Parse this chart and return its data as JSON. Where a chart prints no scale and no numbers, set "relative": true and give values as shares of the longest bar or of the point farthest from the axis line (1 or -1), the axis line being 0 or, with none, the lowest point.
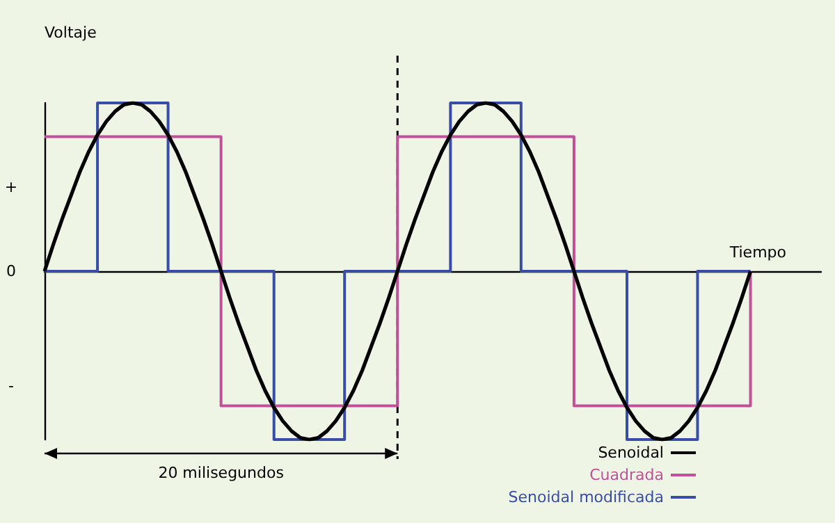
{
  "chart_data": {
    "type": "line",
    "relative": true,
    "xlabel": "Tiempo",
    "ylabel": "Voltaje",
    "grid": false,
    "legend": "bottom right",
    "categories": [
      null,
      null,
      null,
      null,
      null,
      null,
      null,
      null,
      null,
      null,
      null,
      null,
      null,
      null,
      null,
      null,
      null,
      null,
      null,
      null,
      null,
      null,
      null,
      null,
      null,
      null,
      null,
      null,
      null,
      null,
      null,
      null,
      null,
      null,
      null,
      null,
      null,
      null,
      null,
      null,
      null,
      null,
      null,
      null,
      null,
      null,
      null,
      null,
      null,
      null,
      null,
      null,
      null,
      null,
      null,
      null,
      null,
      null,
      null,
      null,
      null,
      null,
      null,
      null,
      null,
      null,
      null,
      null,
      null,
      null,
      null,
      null,
      null,
      null,
      null,
      null,
      null,
      null,
      null,
      null,
      null,
      null,
      null,
      null,
      null,
      null,
      null,
      null,
      null
    ],
    "series": [
      {
        "name": "Senoidal",
        "color": "#000000",
        "values": [
          0,
          0.16,
          0.31,
          0.45,
          0.59,
          0.71,
          0.81,
          0.89,
          0.95,
          0.99,
          1,
          0.99,
          0.95,
          0.89,
          0.81,
          0.71,
          0.59,
          0.45,
          0.31,
          0.16,
          0,
          -0.16,
          -0.31,
          -0.45,
          -0.59,
          -0.71,
          -0.81,
          -0.89,
          -0.95,
          -0.99,
          -1,
          -0.99,
          -0.95,
          -0.89,
          -0.81,
          -0.71,
          -0.59,
          -0.45,
          -0.31,
          -0.16,
          0,
          0.16,
          0.31,
          0.45,
          0.59,
          0.71,
          0.81,
          0.89,
          0.95,
          0.99,
          1,
          0.99,
          0.95,
          0.89,
          0.81,
          0.71,
          0.59,
          0.45,
          0.31,
          0.16,
          0,
          -0.16,
          -0.31,
          -0.45,
          -0.59,
          -0.71,
          -0.81,
          -0.89,
          -0.95,
          -0.99,
          -1,
          -0.99,
          -0.95,
          -0.89,
          -0.81,
          -0.71,
          -0.59,
          -0.45,
          -0.31,
          -0.16,
          0,
          null,
          null,
          null,
          null,
          null,
          null,
          null,
          null
        ]
      },
      {
        "name": "Cuadrada",
        "color": "#c0509c",
        "type": "step",
        "values": [
          0.8,
          0.8,
          0.8,
          0.8,
          0.8,
          0.8,
          0.8,
          0.8,
          0.8,
          0.8,
          0.8,
          0.8,
          0.8,
          0.8,
          0.8,
          0.8,
          0.8,
          0.8,
          0.8,
          0.8,
          -0.8,
          -0.8,
          -0.8,
          -0.8,
          -0.8,
          -0.8,
          -0.8,
          -0.8,
          -0.8,
          -0.8,
          -0.8,
          -0.8,
          -0.8,
          -0.8,
          -0.8,
          -0.8,
          -0.8,
          -0.8,
          -0.8,
          -0.8,
          0.8,
          0.8,
          0.8,
          0.8,
          0.8,
          0.8,
          0.8,
          0.8,
          0.8,
          0.8,
          0.8,
          0.8,
          0.8,
          0.8,
          0.8,
          0.8,
          0.8,
          0.8,
          0.8,
          0.8,
          -0.8,
          -0.8,
          -0.8,
          -0.8,
          -0.8,
          -0.8,
          -0.8,
          -0.8,
          -0.8,
          -0.8,
          -0.8,
          -0.8,
          -0.8,
          -0.8,
          -0.8,
          -0.8,
          -0.8,
          -0.8,
          -0.8,
          -0.8,
          0,
          null,
          null,
          null,
          null,
          null,
          null,
          null,
          null
        ]
      },
      {
        "name": "Senoidal modificada",
        "color": "#3a4da6",
        "type": "step",
        "values": [
          0,
          0,
          0,
          0,
          0,
          0,
          1,
          1,
          1,
          1,
          1,
          1,
          1,
          1,
          0,
          0,
          0,
          0,
          0,
          0,
          0,
          0,
          0,
          0,
          0,
          0,
          -1,
          -1,
          -1,
          -1,
          -1,
          -1,
          -1,
          -1,
          0,
          0,
          0,
          0,
          0,
          0,
          0,
          0,
          0,
          0,
          0,
          0,
          1,
          1,
          1,
          1,
          1,
          1,
          1,
          1,
          0,
          0,
          0,
          0,
          0,
          0,
          0,
          0,
          0,
          0,
          0,
          0,
          -1,
          -1,
          -1,
          -1,
          -1,
          -1,
          -1,
          -1,
          0,
          0,
          0,
          0,
          0,
          0,
          0,
          null,
          null,
          null,
          null,
          null,
          null,
          null,
          null
        ]
      }
    ],
    "annotations": [
      "+",
      "0",
      "-",
      "20 milisegundos"
    ]
  }
}
